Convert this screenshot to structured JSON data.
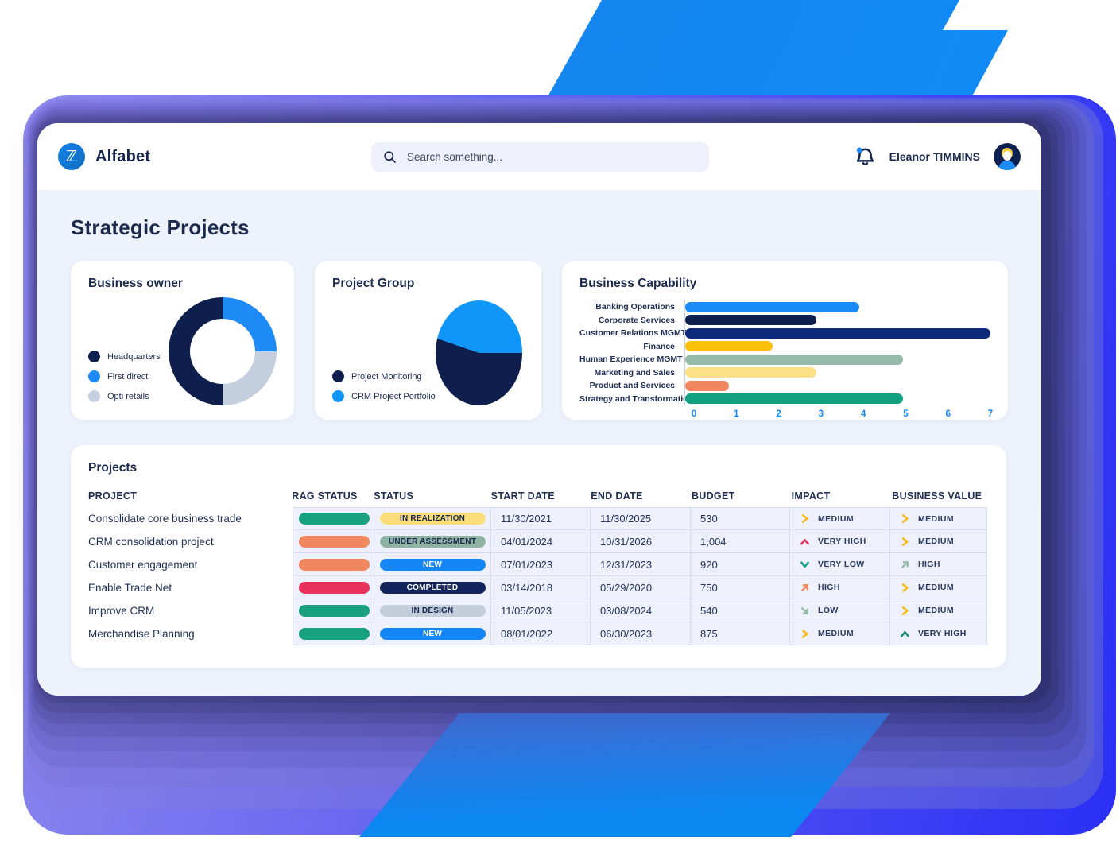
{
  "topbar": {
    "logo_glyph": "ℤ",
    "app_name": "Alfabet",
    "search_placeholder": "Search something...",
    "user_name": "Eleanor TIMMINS"
  },
  "page_title": "Strategic Projects",
  "chart_data": [
    {
      "type": "donut",
      "title": "Business owner",
      "legend_position": "left-bottom",
      "slices": [
        {
          "label": "Headquarters",
          "value": 50,
          "color": "#0E1F4D",
          "from": 180,
          "to": 360
        },
        {
          "label": "First direct",
          "value": 25,
          "color": "#1E8AF5",
          "from": 0,
          "to": 90
        },
        {
          "label": "Opti retails",
          "value": 25,
          "color": "#C3CEDE",
          "from": 90,
          "to": 180
        }
      ]
    },
    {
      "type": "pie",
      "title": "Project Group",
      "legend_position": "left-bottom",
      "slices": [
        {
          "label": "Project Monitoring",
          "value": 56,
          "color": "#0E1F4D",
          "from": 90,
          "to": 289
        },
        {
          "label": "CRM Project Portfolio",
          "value": 44,
          "color": "#1096F8",
          "from": 289,
          "to": 450
        }
      ]
    },
    {
      "type": "bar",
      "title": "Business Capability",
      "orientation": "horizontal",
      "xlim": [
        0,
        7
      ],
      "ticks": [
        0,
        1,
        2,
        3,
        4,
        5,
        6,
        7
      ],
      "grid": false,
      "categories": [
        "Banking Operations",
        "Corporate Services",
        "Customer Relations MGMT",
        "Finance",
        "Human Experience MGMT",
        "Marketing and Sales",
        "Product and Services",
        "Strategy and Transformation"
      ],
      "values": [
        4,
        3,
        7,
        2,
        5,
        3,
        1,
        5
      ],
      "colors": [
        "#1B8CF7",
        "#0C1F4E",
        "#0D2A7A",
        "#FCC20A",
        "#96BAA9",
        "#FCE088",
        "#F2865E",
        "#12A180"
      ]
    }
  ],
  "projects": {
    "title": "Projects",
    "columns": [
      "PROJECT",
      "RAG STATUS",
      "STATUS",
      "START DATE",
      "END DATE",
      "BUDGET",
      "IMPACT",
      "BUSINESS VALUE"
    ],
    "rows": [
      {
        "project": "Consolidate core business trade",
        "rag_color": "#18A17E",
        "status": {
          "label": "IN REALIZATION",
          "bg": "#FBDE79",
          "fg": "#16264F"
        },
        "start_date": "11/30/2021",
        "end_date": "11/30/2025",
        "budget": "530",
        "impact": {
          "icon": "chevron-right",
          "color": "#F6B90F",
          "label": "MEDIUM"
        },
        "business_value": {
          "icon": "chevron-right",
          "color": "#F6B90F",
          "label": "MEDIUM"
        }
      },
      {
        "project": "CRM consolidation project",
        "rag_color": "#F2865E",
        "status": {
          "label": "UNDER ASSESSMENT",
          "bg": "#8FB3A3",
          "fg": "#16264F"
        },
        "start_date": "04/01/2024",
        "end_date": "10/31/2026",
        "budget": "1,004",
        "impact": {
          "icon": "chevron-up",
          "color": "#E8325B",
          "label": "VERY HIGH"
        },
        "business_value": {
          "icon": "chevron-right",
          "color": "#F6B90F",
          "label": "MEDIUM"
        }
      },
      {
        "project": "Customer engagement",
        "rag_color": "#F2865E",
        "status": {
          "label": "NEW",
          "bg": "#1586F5",
          "fg": "#FFFFFF"
        },
        "start_date": "07/01/2023",
        "end_date": "12/31/2023",
        "budget": "920",
        "impact": {
          "icon": "chevron-down",
          "color": "#12A180",
          "label": "VERY LOW"
        },
        "business_value": {
          "icon": "arrow-up-right",
          "color": "#96B9A8",
          "label": "HIGH"
        }
      },
      {
        "project": "Enable Trade Net",
        "rag_color": "#E8325B",
        "status": {
          "label": "COMPLETED",
          "bg": "#13255C",
          "fg": "#FFFFFF"
        },
        "start_date": "03/14/2018",
        "end_date": "05/29/2020",
        "budget": "750",
        "impact": {
          "icon": "arrow-up-right",
          "color": "#F2865E",
          "label": "HIGH"
        },
        "business_value": {
          "icon": "chevron-right",
          "color": "#F6B90F",
          "label": "MEDIUM"
        }
      },
      {
        "project": "Improve CRM",
        "rag_color": "#18A17E",
        "status": {
          "label": "IN DESIGN",
          "bg": "#C4CDDA",
          "fg": "#16264F"
        },
        "start_date": "11/05/2023",
        "end_date": "03/08/2024",
        "budget": "540",
        "impact": {
          "icon": "arrow-down-right",
          "color": "#96B9A8",
          "label": "LOW"
        },
        "business_value": {
          "icon": "chevron-right",
          "color": "#F6B90F",
          "label": "MEDIUM"
        }
      },
      {
        "project": "Merchandise Planning",
        "rag_color": "#18A17E",
        "status": {
          "label": "NEW",
          "bg": "#1586F5",
          "fg": "#FFFFFF"
        },
        "start_date": "08/01/2022",
        "end_date": "06/30/2023",
        "budget": "875",
        "impact": {
          "icon": "chevron-right",
          "color": "#F6B90F",
          "label": "MEDIUM"
        },
        "business_value": {
          "icon": "chevron-up",
          "color": "#0F8A70",
          "label": "VERY HIGH"
        }
      }
    ]
  }
}
